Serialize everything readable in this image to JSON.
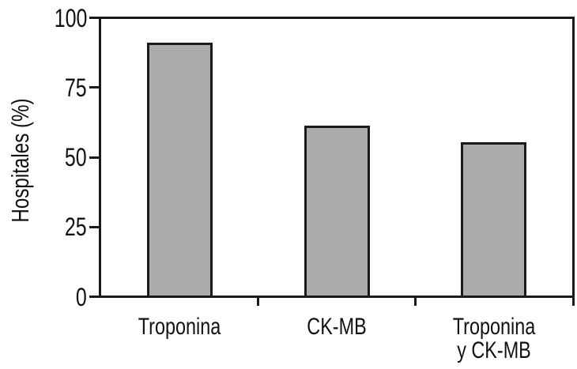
{
  "chart_data": {
    "type": "bar",
    "categories": [
      "Troponina",
      "CK-MB",
      "Troponina\ny CK-MB"
    ],
    "values": [
      91,
      61,
      55
    ],
    "title": "",
    "xlabel": "",
    "ylabel": "Hospitales (%)",
    "ylim": [
      0,
      100
    ],
    "yticks": [
      0,
      25,
      50,
      75,
      100
    ],
    "grid": false,
    "legend": false,
    "colors": {
      "bar_fill": "#a9abac",
      "bar_border": "#1a1a1a",
      "axis": "#1a1a1a",
      "text": "#111111",
      "background": "#ffffff"
    }
  }
}
